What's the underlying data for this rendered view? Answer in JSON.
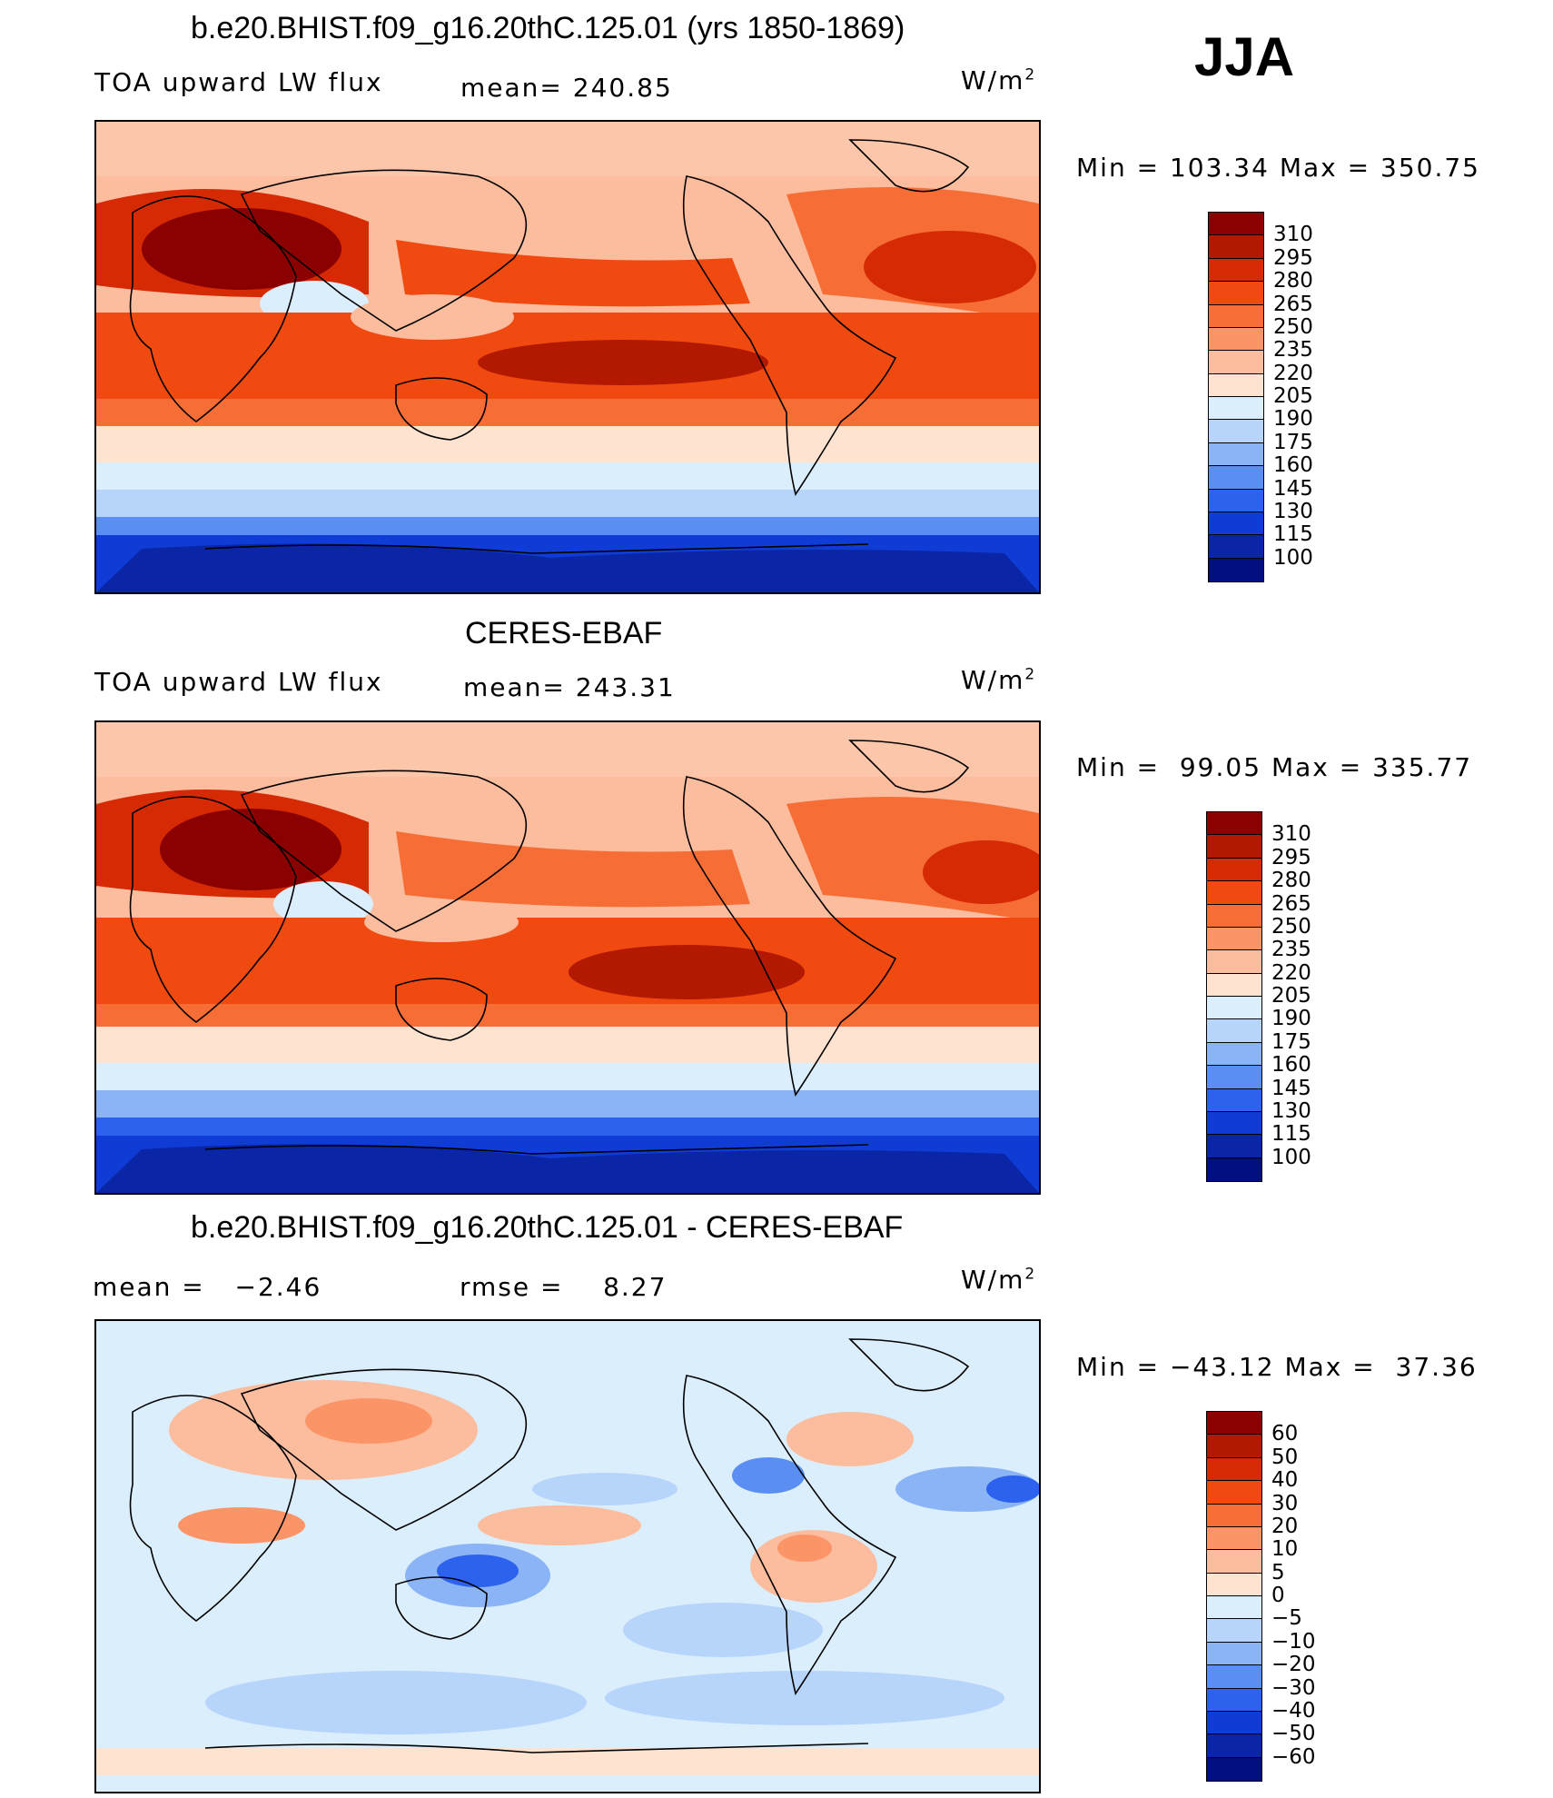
{
  "season": "JJA",
  "units": "W/m",
  "units_sup": "2",
  "chart_data": [
    {
      "type": "heatmap",
      "title": "b.e20.BHIST.f09_g16.20thC.125.01 (yrs 1850-1869)",
      "variable": "TOA upward LW flux",
      "mean_label": "mean=",
      "mean": "240.85",
      "min_label": "Min",
      "min": "103.34",
      "max_label": "Max",
      "max": "350.75",
      "levels": [
        "310",
        "295",
        "280",
        "265",
        "250",
        "235",
        "220",
        "205",
        "190",
        "175",
        "160",
        "145",
        "130",
        "115",
        "100"
      ],
      "colors": [
        "#8b0000",
        "#b31800",
        "#d62a05",
        "#f04a10",
        "#f76d36",
        "#fb9568",
        "#fcbc9e",
        "#fee4d0",
        "#dbeefc",
        "#b7d4fb",
        "#8ab4f5",
        "#5b8ef2",
        "#2d62ee",
        "#0f3cd4",
        "#0a25a6",
        "#000f80"
      ]
    },
    {
      "type": "heatmap",
      "title": "CERES-EBAF",
      "variable": "TOA upward LW flux",
      "mean_label": "mean=",
      "mean": "243.31",
      "min_label": "Min",
      "min": "99.05",
      "max_label": "Max",
      "max": "335.77",
      "levels": [
        "310",
        "295",
        "280",
        "265",
        "250",
        "235",
        "220",
        "205",
        "190",
        "175",
        "160",
        "145",
        "130",
        "115",
        "100"
      ],
      "colors": [
        "#8b0000",
        "#b31800",
        "#d62a05",
        "#f04a10",
        "#f76d36",
        "#fb9568",
        "#fcbc9e",
        "#fee4d0",
        "#dbeefc",
        "#b7d4fb",
        "#8ab4f5",
        "#5b8ef2",
        "#2d62ee",
        "#0f3cd4",
        "#0a25a6",
        "#000f80"
      ]
    },
    {
      "type": "heatmap",
      "title": "b.e20.BHIST.f09_g16.20thC.125.01 - CERES-EBAF",
      "mean_label": "mean =",
      "mean": "−2.46",
      "rmse_label": "rmse =",
      "rmse": "8.27",
      "min_label": "Min",
      "min": "−43.12",
      "max_label": "Max",
      "max": "37.36",
      "levels": [
        "60",
        "50",
        "40",
        "30",
        "20",
        "10",
        "5",
        "0",
        "−5",
        "−10",
        "−20",
        "−30",
        "−40",
        "−50",
        "−60"
      ],
      "colors": [
        "#8b0000",
        "#b31800",
        "#d62a05",
        "#f04a10",
        "#f76d36",
        "#fb9568",
        "#fcbc9e",
        "#fee4d0",
        "#dbeefc",
        "#b7d4fb",
        "#8ab4f5",
        "#5b8ef2",
        "#2d62ee",
        "#0f3cd4",
        "#0a25a6",
        "#000f80"
      ]
    }
  ]
}
